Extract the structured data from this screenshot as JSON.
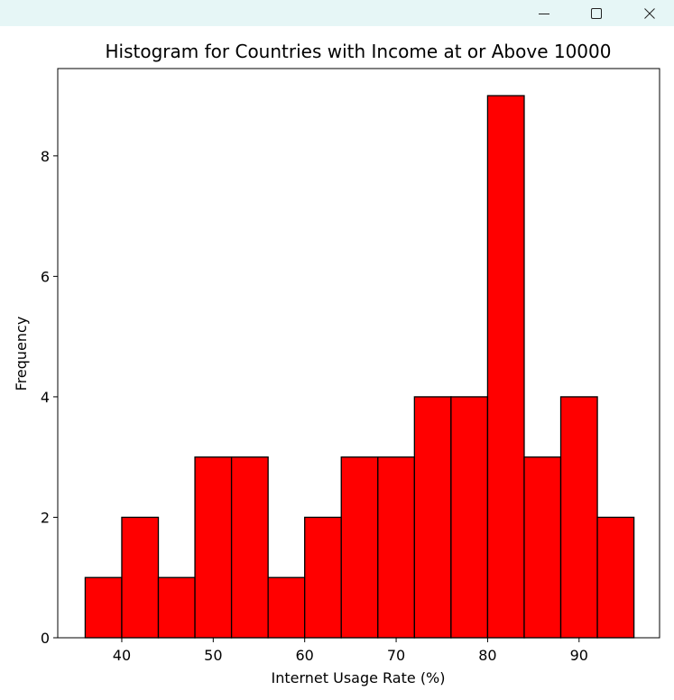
{
  "window": {
    "controls": [
      "minimize-icon",
      "maximize-icon",
      "close-icon"
    ]
  },
  "chart_data": {
    "type": "bar",
    "title": "Histogram for Countries with Income at or Above 10000",
    "xlabel": "Internet Usage Rate (%)",
    "ylabel": "Frequency",
    "bin_edges": [
      36,
      40,
      44,
      48,
      52,
      56,
      60,
      64,
      68,
      72,
      76,
      80,
      84,
      88,
      92,
      96
    ],
    "values": [
      1,
      2,
      1,
      3,
      3,
      1,
      2,
      3,
      3,
      4,
      4,
      9,
      3,
      4,
      2
    ],
    "xlim": [
      33,
      98.8
    ],
    "ylim": [
      0,
      9.45
    ],
    "xticks": [
      40,
      50,
      60,
      70,
      80,
      90
    ],
    "yticks": [
      0,
      2,
      4,
      6,
      8
    ],
    "bar_color": "#ff0000",
    "edge_color": "#000000",
    "grid": false,
    "legend": "none"
  }
}
